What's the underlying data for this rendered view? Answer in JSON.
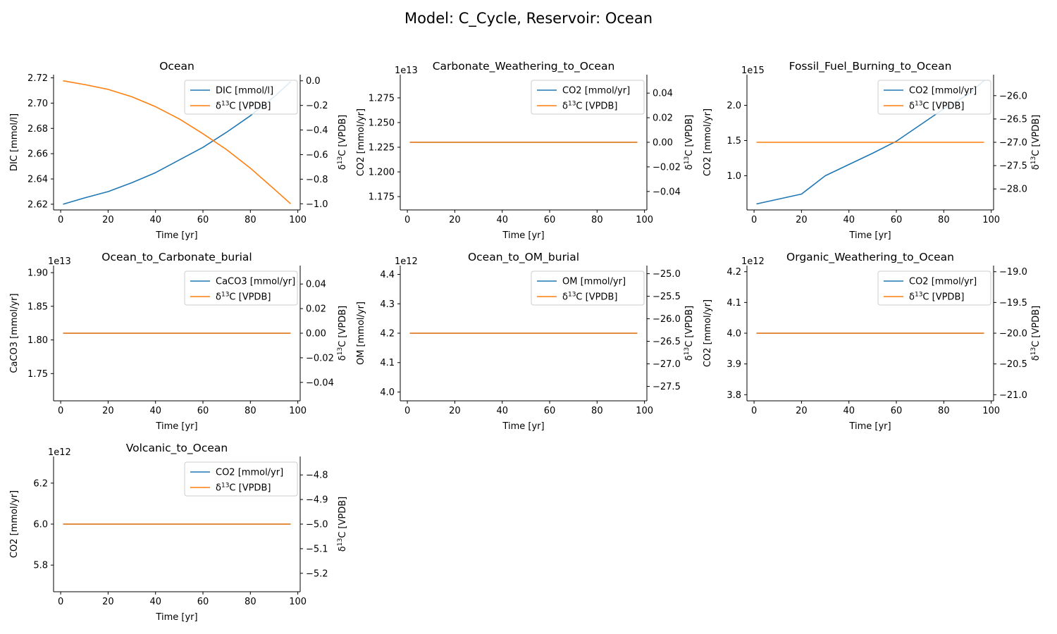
{
  "suptitle": "Model: C_Cycle, Reservoir: Ocean",
  "chart_data": [
    {
      "type": "line",
      "title": "Ocean",
      "xlabel": "Time [yr]",
      "ylabel": "DIC [mmol/l]",
      "y2label": "δ13C [VPDB]",
      "xlim": [
        -3,
        101
      ],
      "xticks": [
        "0",
        "20",
        "40",
        "60",
        "80",
        "100"
      ],
      "ylim": [
        2.6155,
        2.7225
      ],
      "yticks": [
        "2.62",
        "2.64",
        "2.66",
        "2.68",
        "2.70",
        "2.72"
      ],
      "y2lim": [
        -1.05,
        0.05
      ],
      "y2ticks": [
        "−1.0",
        "−0.8",
        "−0.6",
        "−0.4",
        "−0.2",
        "0.0"
      ],
      "legend": "top-right",
      "series": [
        {
          "name": "DIC [mmol/l]",
          "axis": "left",
          "color": "#1f77b4",
          "x": [
            1,
            10,
            20,
            30,
            40,
            50,
            60,
            70,
            80,
            90,
            97
          ],
          "y": [
            2.62,
            2.625,
            2.63,
            2.637,
            2.645,
            2.655,
            2.665,
            2.677,
            2.69,
            2.705,
            2.717
          ]
        },
        {
          "name": "δ13C [VPDB]",
          "axis": "right",
          "color": "#ff7f0e",
          "x": [
            1,
            10,
            20,
            30,
            40,
            50,
            60,
            70,
            80,
            90,
            97
          ],
          "y": [
            0.0,
            -0.03,
            -0.07,
            -0.13,
            -0.21,
            -0.31,
            -0.43,
            -0.56,
            -0.71,
            -0.88,
            -1.0
          ]
        }
      ]
    },
    {
      "type": "line",
      "title": "Carbonate_Weathering_to_Ocean",
      "xlabel": "Time [yr]",
      "ylabel": "CO2 [mmol/yr]",
      "y2label": "δ13C [VPDB]",
      "offset": "1e13",
      "xlim": [
        -3,
        101
      ],
      "xticks": [
        "0",
        "20",
        "40",
        "60",
        "80",
        "100"
      ],
      "ylim": [
        1.1615,
        1.2985
      ],
      "yticks": [
        "1.175",
        "1.200",
        "1.225",
        "1.250",
        "1.275"
      ],
      "y2lim": [
        -0.055,
        0.055
      ],
      "y2ticks": [
        "−0.04",
        "−0.02",
        "0.00",
        "0.02",
        "0.04"
      ],
      "legend": "top-right",
      "series": [
        {
          "name": "CO2 [mmol/yr]",
          "axis": "left",
          "color": "#1f77b4",
          "x": [
            1,
            97
          ],
          "y": [
            1.23,
            1.23
          ]
        },
        {
          "name": "δ13C [VPDB]",
          "axis": "right",
          "color": "#ff7f0e",
          "x": [
            1,
            97
          ],
          "y": [
            0.0,
            0.0
          ]
        }
      ]
    },
    {
      "type": "line",
      "title": "Fossil_Fuel_Burning_to_Ocean",
      "xlabel": "Time [yr]",
      "ylabel": "CO2 [mmol/yr]",
      "y2label": "δ13C [VPDB]",
      "offset": "1e15",
      "xlim": [
        -3,
        101
      ],
      "xticks": [
        "0",
        "20",
        "40",
        "60",
        "80",
        "100"
      ],
      "ylim": [
        0.515,
        2.435
      ],
      "yticks": [
        "1.0",
        "1.5",
        "2.0"
      ],
      "y2lim": [
        -28.45,
        -25.55
      ],
      "y2ticks": [
        "−28.0",
        "−27.5",
        "−27.0",
        "−26.5",
        "−26.0"
      ],
      "legend": "top-right",
      "series": [
        {
          "name": "CO2 [mmol/yr]",
          "axis": "left",
          "color": "#1f77b4",
          "x": [
            1,
            20,
            30,
            40,
            50,
            60,
            70,
            80,
            90,
            97
          ],
          "y": [
            0.6,
            0.74,
            1.0,
            1.16,
            1.32,
            1.49,
            1.72,
            1.95,
            2.15,
            2.35
          ]
        },
        {
          "name": "δ13C [VPDB]",
          "axis": "right",
          "color": "#ff7f0e",
          "x": [
            1,
            97
          ],
          "y": [
            -27.0,
            -27.0
          ]
        }
      ]
    },
    {
      "type": "line",
      "title": "Ocean_to_Carbonate_burial",
      "xlabel": "Time [yr]",
      "ylabel": "CaCO3 [mmol/yr]",
      "y2label": "δ13C [VPDB]",
      "offset": "1e13",
      "xlim": [
        -3,
        101
      ],
      "xticks": [
        "0",
        "20",
        "40",
        "60",
        "80",
        "100"
      ],
      "ylim": [
        1.7095,
        1.9105
      ],
      "yticks": [
        "1.75",
        "1.80",
        "1.85",
        "1.90"
      ],
      "y2lim": [
        -0.055,
        0.055
      ],
      "y2ticks": [
        "−0.04",
        "−0.02",
        "0.00",
        "0.02",
        "0.04"
      ],
      "legend": "top-right",
      "series": [
        {
          "name": "CaCO3 [mmol/yr]",
          "axis": "left",
          "color": "#1f77b4",
          "x": [
            1,
            97
          ],
          "y": [
            1.81,
            1.81
          ]
        },
        {
          "name": "δ13C [VPDB]",
          "axis": "right",
          "color": "#ff7f0e",
          "x": [
            1,
            97
          ],
          "y": [
            0.0,
            0.0
          ]
        }
      ]
    },
    {
      "type": "line",
      "title": "Ocean_to_OM_burial",
      "xlabel": "Time [yr]",
      "ylabel": "OM [mmol/yr]",
      "y2label": "δ13C [VPDB]",
      "offset": "1e12",
      "xlim": [
        -3,
        101
      ],
      "xticks": [
        "0",
        "20",
        "40",
        "60",
        "80",
        "100"
      ],
      "ylim": [
        3.97,
        4.43
      ],
      "yticks": [
        "4.0",
        "4.1",
        "4.2",
        "4.3",
        "4.4"
      ],
      "y2lim": [
        -27.82,
        -24.82
      ],
      "y2ticks": [
        "−27.5",
        "−27.0",
        "−26.5",
        "−26.0",
        "−25.5",
        "−25.0"
      ],
      "legend": "top-right",
      "series": [
        {
          "name": "OM [mmol/yr]",
          "axis": "left",
          "color": "#1f77b4",
          "x": [
            1,
            97
          ],
          "y": [
            4.2,
            4.2
          ]
        },
        {
          "name": "δ13C [VPDB]",
          "axis": "right",
          "color": "#ff7f0e",
          "x": [
            1,
            97
          ],
          "y": [
            -26.32,
            -26.32
          ]
        }
      ]
    },
    {
      "type": "line",
      "title": "Organic_Weathering_to_Ocean",
      "xlabel": "Time [yr]",
      "ylabel": "CO2 [mmol/yr]",
      "y2label": "δ13C [VPDB]",
      "offset": "1e12",
      "xlim": [
        -3,
        101
      ],
      "xticks": [
        "0",
        "20",
        "40",
        "60",
        "80",
        "100"
      ],
      "ylim": [
        3.78,
        4.22
      ],
      "yticks": [
        "3.8",
        "3.9",
        "4.0",
        "4.1",
        "4.2"
      ],
      "y2lim": [
        -21.1,
        -18.9
      ],
      "y2ticks": [
        "−21.0",
        "−20.5",
        "−20.0",
        "−19.5",
        "−19.0"
      ],
      "legend": "top-right",
      "series": [
        {
          "name": "CO2 [mmol/yr]",
          "axis": "left",
          "color": "#1f77b4",
          "x": [
            1,
            97
          ],
          "y": [
            4.0,
            4.0
          ]
        },
        {
          "name": "δ13C [VPDB]",
          "axis": "right",
          "color": "#ff7f0e",
          "x": [
            1,
            97
          ],
          "y": [
            -20.0,
            -20.0
          ]
        }
      ]
    },
    {
      "type": "line",
      "title": "Volcanic_to_Ocean",
      "xlabel": "Time [yr]",
      "ylabel": "CO2 [mmol/yr]",
      "y2label": "δ13C [VPDB]",
      "offset": "1e12",
      "xlim": [
        -3,
        101
      ],
      "xticks": [
        "0",
        "20",
        "40",
        "60",
        "80",
        "100"
      ],
      "ylim": [
        5.67,
        6.33
      ],
      "yticks": [
        "5.8",
        "6.0",
        "6.2"
      ],
      "y2lim": [
        -5.275,
        -4.725
      ],
      "y2ticks": [
        "−5.2",
        "−5.1",
        "−5.0",
        "−4.9",
        "−4.8"
      ],
      "legend": "top-right",
      "series": [
        {
          "name": "CO2 [mmol/yr]",
          "axis": "left",
          "color": "#1f77b4",
          "x": [
            1,
            97
          ],
          "y": [
            6.0,
            6.0
          ]
        },
        {
          "name": "δ13C [VPDB]",
          "axis": "right",
          "color": "#ff7f0e",
          "x": [
            1,
            97
          ],
          "y": [
            -5.0,
            -5.0
          ]
        }
      ]
    }
  ]
}
